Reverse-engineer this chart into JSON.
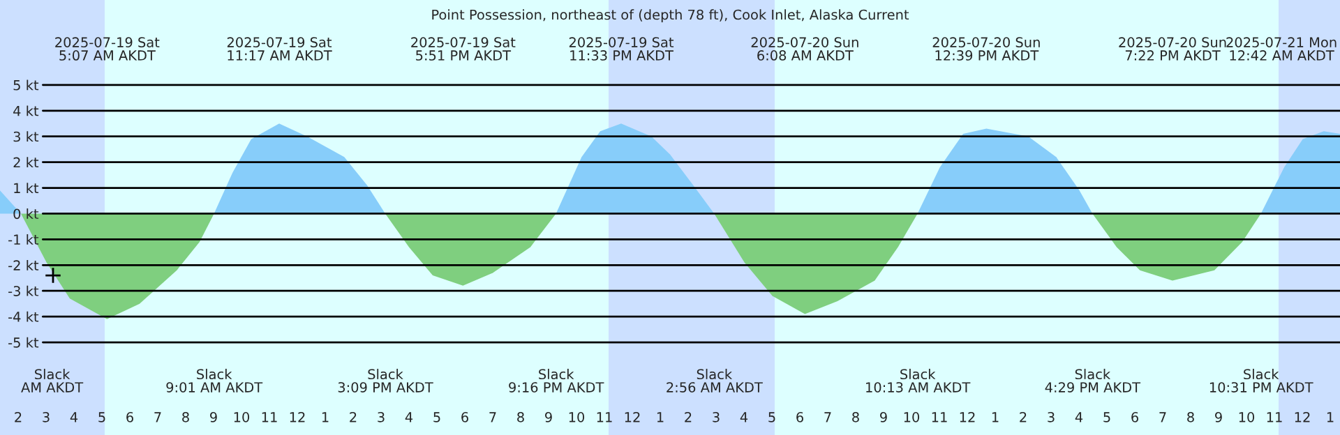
{
  "chart_data": {
    "type": "area",
    "title": "Point Possession, northeast of (depth 78 ft), Cook Inlet, Alaska Current",
    "x": [
      "2025-07-19T01:21",
      "2025-07-19T02:06",
      "2025-07-19T03:01",
      "2025-07-19T03:51",
      "2025-07-19T05:11",
      "2025-07-19T06:21",
      "2025-07-19T07:41",
      "2025-07-19T08:30",
      "2025-07-19T09:01",
      "2025-07-19T09:41",
      "2025-07-19T10:21",
      "2025-07-19T11:21",
      "2025-07-19T12:21",
      "2025-07-19T13:41",
      "2025-07-19T14:30",
      "2025-07-19T15:09",
      "2025-07-19T16:00",
      "2025-07-19T16:51",
      "2025-07-19T17:56",
      "2025-07-19T19:00",
      "2025-07-19T20:21",
      "2025-07-19T21:16",
      "2025-07-19T22:11",
      "2025-07-19T22:51",
      "2025-07-19T23:36",
      "2025-07-20T00:41",
      "2025-07-20T01:21",
      "2025-07-20T02:11",
      "2025-07-20T02:56",
      "2025-07-20T04:01",
      "2025-07-20T05:01",
      "2025-07-20T06:11",
      "2025-07-20T07:21",
      "2025-07-20T08:41",
      "2025-07-20T09:31",
      "2025-07-20T10:13",
      "2025-07-20T11:01",
      "2025-07-20T11:51",
      "2025-07-20T12:41",
      "2025-07-20T14:11",
      "2025-07-20T15:11",
      "2025-07-20T16:01",
      "2025-07-20T16:29",
      "2025-07-20T17:21",
      "2025-07-20T18:11",
      "2025-07-20T19:21",
      "2025-07-20T20:51",
      "2025-07-20T21:51",
      "2025-07-20T22:31",
      "2025-07-20T23:21",
      "2025-07-21T00:01",
      "2025-07-21T00:46",
      "2025-07-21T01:21"
    ],
    "series": [
      {
        "color": "#87cdfa",
        "values": [
          0.9,
          0,
          null,
          null,
          null,
          null,
          null,
          null,
          0,
          1.6,
          2.9,
          3.5,
          3.0,
          2.2,
          1.1,
          0,
          null,
          null,
          null,
          null,
          null,
          0,
          2.2,
          3.2,
          3.5,
          3.0,
          2.3,
          1.1,
          0,
          null,
          null,
          null,
          null,
          null,
          null,
          0,
          1.8,
          3.1,
          3.3,
          3.0,
          2.2,
          0.9,
          0,
          null,
          null,
          null,
          null,
          null,
          0,
          1.8,
          2.9,
          3.2,
          3.1
        ]
      },
      {
        "color": "#7fcf7f",
        "values": [
          null,
          0,
          -1.9,
          -3.3,
          -4.1,
          -3.5,
          -2.2,
          -1.1,
          0,
          null,
          null,
          null,
          null,
          null,
          null,
          0,
          -1.3,
          -2.4,
          -2.8,
          -2.3,
          -1.3,
          0,
          null,
          null,
          null,
          null,
          null,
          null,
          0,
          -1.9,
          -3.2,
          -3.9,
          -3.4,
          -2.6,
          -1.3,
          0,
          null,
          null,
          null,
          null,
          null,
          null,
          0,
          -1.3,
          -2.2,
          -2.6,
          -2.2,
          -1.1,
          0,
          null,
          null,
          null,
          null
        ]
      },
      {
        "type": "scatter",
        "color": "#000000",
        "marker": "cross",
        "x": [
          "2025-07-19T03:15"
        ],
        "values": [
          -2.4
        ]
      }
    ],
    "xlim": [
      "2025-07-19T01:21",
      "2025-07-21T01:21"
    ],
    "ylim": [
      -8.6,
      8.3
    ],
    "xticks": [
      {
        "value": "2025-07-19T02:00",
        "label": "2"
      },
      {
        "value": "2025-07-19T03:00",
        "label": "3"
      },
      {
        "value": "2025-07-19T04:00",
        "label": "4"
      },
      {
        "value": "2025-07-19T05:00",
        "label": "5"
      },
      {
        "value": "2025-07-19T06:00",
        "label": "6"
      },
      {
        "value": "2025-07-19T07:00",
        "label": "7"
      },
      {
        "value": "2025-07-19T08:00",
        "label": "8"
      },
      {
        "value": "2025-07-19T09:00",
        "label": "9"
      },
      {
        "value": "2025-07-19T10:00",
        "label": "10"
      },
      {
        "value": "2025-07-19T11:00",
        "label": "11"
      },
      {
        "value": "2025-07-19T12:00",
        "label": "12"
      },
      {
        "value": "2025-07-19T13:00",
        "label": "1"
      },
      {
        "value": "2025-07-19T14:00",
        "label": "2"
      },
      {
        "value": "2025-07-19T15:00",
        "label": "3"
      },
      {
        "value": "2025-07-19T16:00",
        "label": "4"
      },
      {
        "value": "2025-07-19T17:00",
        "label": "5"
      },
      {
        "value": "2025-07-19T18:00",
        "label": "6"
      },
      {
        "value": "2025-07-19T19:00",
        "label": "7"
      },
      {
        "value": "2025-07-19T20:00",
        "label": "8"
      },
      {
        "value": "2025-07-19T21:00",
        "label": "9"
      },
      {
        "value": "2025-07-19T22:00",
        "label": "10"
      },
      {
        "value": "2025-07-19T23:00",
        "label": "11"
      },
      {
        "value": "2025-07-20T00:00",
        "label": "12"
      },
      {
        "value": "2025-07-20T01:00",
        "label": "1"
      },
      {
        "value": "2025-07-20T02:00",
        "label": "2"
      },
      {
        "value": "2025-07-20T03:00",
        "label": "3"
      },
      {
        "value": "2025-07-20T04:00",
        "label": "4"
      },
      {
        "value": "2025-07-20T05:00",
        "label": "5"
      },
      {
        "value": "2025-07-20T06:00",
        "label": "6"
      },
      {
        "value": "2025-07-20T07:00",
        "label": "7"
      },
      {
        "value": "2025-07-20T08:00",
        "label": "8"
      },
      {
        "value": "2025-07-20T09:00",
        "label": "9"
      },
      {
        "value": "2025-07-20T10:00",
        "label": "10"
      },
      {
        "value": "2025-07-20T11:00",
        "label": "11"
      },
      {
        "value": "2025-07-20T12:00",
        "label": "12"
      },
      {
        "value": "2025-07-20T13:00",
        "label": "1"
      },
      {
        "value": "2025-07-20T14:00",
        "label": "2"
      },
      {
        "value": "2025-07-20T15:00",
        "label": "3"
      },
      {
        "value": "2025-07-20T16:00",
        "label": "4"
      },
      {
        "value": "2025-07-20T17:00",
        "label": "5"
      },
      {
        "value": "2025-07-20T18:00",
        "label": "6"
      },
      {
        "value": "2025-07-20T19:00",
        "label": "7"
      },
      {
        "value": "2025-07-20T20:00",
        "label": "8"
      },
      {
        "value": "2025-07-20T21:00",
        "label": "9"
      },
      {
        "value": "2025-07-20T22:00",
        "label": "10"
      },
      {
        "value": "2025-07-20T23:00",
        "label": "11"
      },
      {
        "value": "2025-07-21T00:00",
        "label": "12"
      },
      {
        "value": "2025-07-21T01:00",
        "label": "1"
      }
    ],
    "yticks": [
      {
        "value": 5,
        "label": "5 kt"
      },
      {
        "value": 4,
        "label": "4 kt"
      },
      {
        "value": 3,
        "label": "3 kt"
      },
      {
        "value": 2,
        "label": "2 kt"
      },
      {
        "value": 1,
        "label": "1 kt"
      },
      {
        "value": 0,
        "label": "0 kt"
      },
      {
        "value": -1,
        "label": "-1 kt"
      },
      {
        "value": -2,
        "label": "-2 kt"
      },
      {
        "value": -3,
        "label": "-3 kt"
      },
      {
        "value": -4,
        "label": "-4 kt"
      },
      {
        "value": -5,
        "label": "-5 kt"
      }
    ],
    "grid": "y",
    "bands": [
      {
        "axis": "x",
        "from": "2025-07-19T01:21",
        "to": "2025-07-19T05:06",
        "color": "#cce0ff"
      },
      {
        "axis": "x",
        "from": "2025-07-19T23:09",
        "to": "2025-07-20T05:06",
        "color": "#cce0ff"
      },
      {
        "axis": "x",
        "from": "2025-07-20T23:09",
        "to": "2025-07-21T01:21",
        "color": "#cce0ff"
      }
    ],
    "annotations": [
      "2025-07-19 Sat\n5:07 AM AKDT",
      "2025-07-19 Sat\n11:17 AM AKDT",
      "2025-07-19 Sat\n5:51 PM AKDT",
      "2025-07-19 Sat\n11:33 PM AKDT",
      "2025-07-20 Sun\n6:08 AM AKDT",
      "2025-07-20 Sun\n12:39 PM AKDT",
      "2025-07-20 Sun\n7:22 PM AKDT",
      "2025-07-21 Mon\n12:42 AM AKDT",
      "Slack\nAM AKDT",
      "Slack\n9:01 AM AKDT",
      "Slack\n3:09 PM AKDT",
      "Slack\n9:16 PM AKDT",
      "Slack\n2:56 AM AKDT",
      "Slack\n10:13 AM AKDT",
      "Slack\n4:29 PM AKDT",
      "Slack\n10:31 PM AKDT"
    ]
  }
}
